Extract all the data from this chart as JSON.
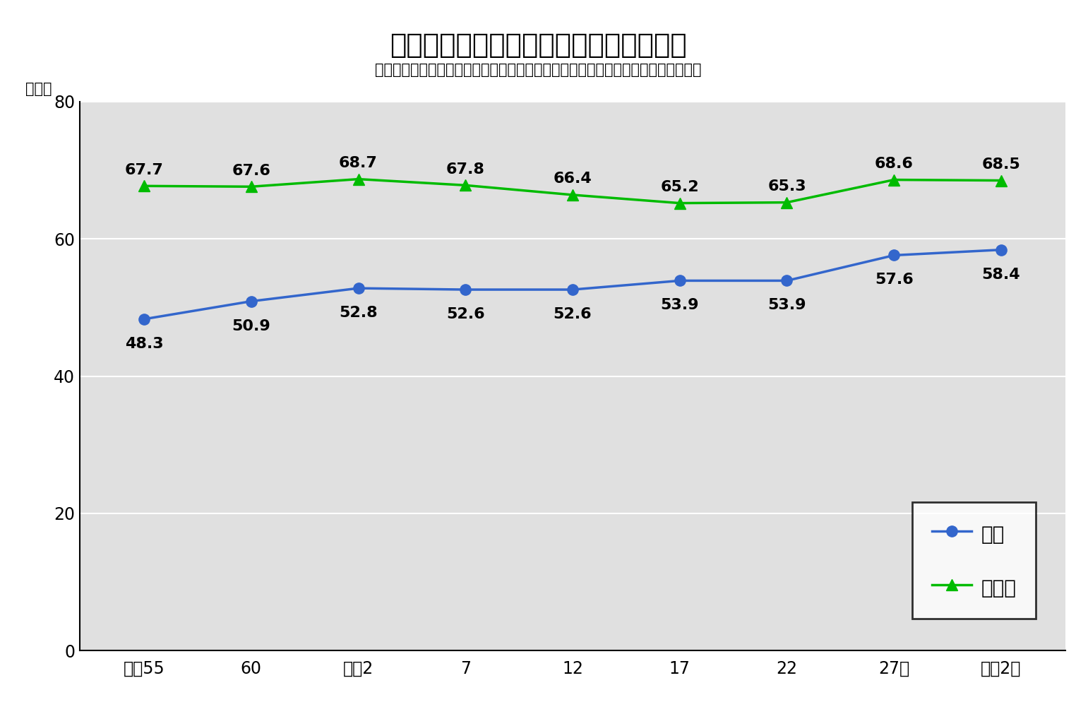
{
  "title": "共働き世帯割合の推移（鳥取県・全国）",
  "subtitle": "（単独世帯等を除いた、いずれかが就業している世帯での夫婦共働きの世帯割合）",
  "ylabel": "（％）",
  "x_labels": [
    "昭和55",
    "60",
    "平成2",
    "7",
    "12",
    "17",
    "22",
    "27年",
    "令和2年"
  ],
  "zenkoku_values": [
    48.3,
    50.9,
    52.8,
    52.6,
    52.6,
    53.9,
    53.9,
    57.6,
    58.4
  ],
  "tottori_values": [
    67.7,
    67.6,
    68.7,
    67.8,
    66.4,
    65.2,
    65.3,
    68.6,
    68.5
  ],
  "zenkoku_color": "#3366CC",
  "tottori_color": "#00BB00",
  "fig_bg_color": "#FFFFFF",
  "plot_bg_color": "#E0E0E0",
  "grid_color": "#C8C8C8",
  "ylim": [
    0,
    80
  ],
  "yticks": [
    0,
    20,
    40,
    60,
    80
  ],
  "legend_zenkoku": "全国",
  "legend_tottori": "鳥取県",
  "title_fontsize": 28,
  "subtitle_fontsize": 15,
  "tick_fontsize": 17,
  "ylabel_fontsize": 15,
  "annotation_fontsize": 16,
  "legend_fontsize": 20
}
